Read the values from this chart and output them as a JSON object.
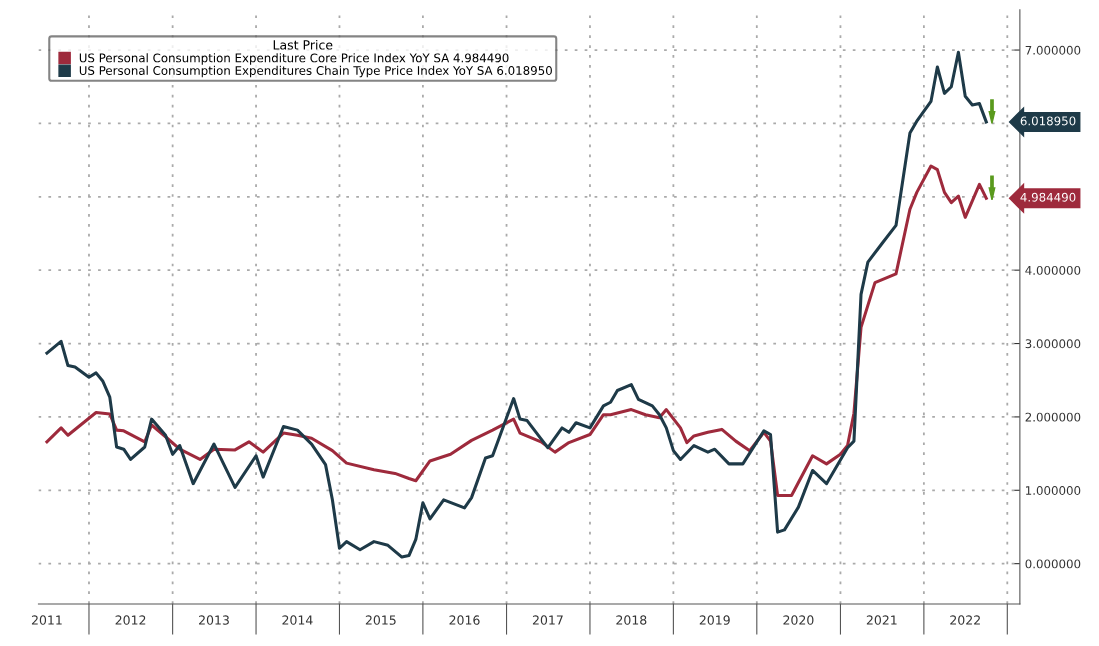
{
  "chart_data": {
    "type": "line",
    "legend_title": "Last Price",
    "legend": "top left",
    "grid": true,
    "line_style": "solid",
    "marker": "none",
    "xlim": [
      "2011-05-25",
      "2023-02-25"
    ],
    "ylim": [
      -0.55,
      7.55
    ],
    "xticks": [
      {
        "value": "2011-07-01",
        "label": "2011"
      },
      {
        "value": "2012-01-01",
        "label": null
      },
      {
        "value": "2012-07-01",
        "label": "2012"
      },
      {
        "value": "2013-01-01",
        "label": null
      },
      {
        "value": "2013-07-01",
        "label": "2013"
      },
      {
        "value": "2014-01-01",
        "label": null
      },
      {
        "value": "2014-07-01",
        "label": "2014"
      },
      {
        "value": "2015-01-01",
        "label": null
      },
      {
        "value": "2015-07-01",
        "label": "2015"
      },
      {
        "value": "2016-01-01",
        "label": null
      },
      {
        "value": "2016-07-01",
        "label": "2016"
      },
      {
        "value": "2017-01-01",
        "label": null
      },
      {
        "value": "2017-07-01",
        "label": "2017"
      },
      {
        "value": "2018-01-01",
        "label": null
      },
      {
        "value": "2018-07-01",
        "label": "2018"
      },
      {
        "value": "2019-01-01",
        "label": null
      },
      {
        "value": "2019-07-01",
        "label": "2019"
      },
      {
        "value": "2020-01-01",
        "label": null
      },
      {
        "value": "2020-07-01",
        "label": "2020"
      },
      {
        "value": "2021-01-01",
        "label": null
      },
      {
        "value": "2021-07-01",
        "label": "2021"
      },
      {
        "value": "2022-01-01",
        "label": null
      },
      {
        "value": "2022-07-01",
        "label": "2022"
      },
      {
        "value": "2023-01-01",
        "label": null
      }
    ],
    "yticks": [
      {
        "value": 0,
        "label": "0.000000"
      },
      {
        "value": 1,
        "label": "1.000000"
      },
      {
        "value": 2,
        "label": "2.000000"
      },
      {
        "value": 3,
        "label": "3.000000"
      },
      {
        "value": 4,
        "label": "4.000000"
      },
      {
        "value": 5,
        "label": null
      },
      {
        "value": 6,
        "label": null
      },
      {
        "value": 7,
        "label": "7.000000"
      }
    ],
    "series": [
      {
        "name": "US Personal Consumption Expenditure Core Price Index YoY SA 4.984490",
        "color": "#9e2a3c",
        "x": [
          "2011-07",
          "2011-09",
          "2011-10",
          "2012-02",
          "2012-04",
          "2012-05",
          "2012-06",
          "2012-09",
          "2012-10",
          "2012-12",
          "2013-02",
          "2013-05",
          "2013-07",
          "2013-10",
          "2013-12",
          "2014-02",
          "2014-05",
          "2014-07",
          "2014-09",
          "2014-12",
          "2015-02",
          "2015-06",
          "2015-09",
          "2015-11",
          "2015-12",
          "2016-02",
          "2016-05",
          "2016-08",
          "2016-11",
          "2017-02",
          "2017-03",
          "2017-06",
          "2017-08",
          "2017-10",
          "2018-01",
          "2018-03",
          "2018-04",
          "2018-07",
          "2018-09",
          "2018-11",
          "2018-12",
          "2019-02",
          "2019-03",
          "2019-04",
          "2019-06",
          "2019-08",
          "2019-10",
          "2019-12",
          "2020-02",
          "2020-03",
          "2020-04",
          "2020-06",
          "2020-09",
          "2020-11",
          "2021-01",
          "2021-02",
          "2021-03",
          "2021-04",
          "2021-06",
          "2021-09",
          "2021-11",
          "2021-12",
          "2022-02",
          "2022-03",
          "2022-04",
          "2022-05",
          "2022-06",
          "2022-07",
          "2022-09",
          "2022-10"
        ],
        "values": [
          1.66,
          1.85,
          1.75,
          2.06,
          2.04,
          1.82,
          1.81,
          1.66,
          1.89,
          1.73,
          1.56,
          1.42,
          1.56,
          1.55,
          1.66,
          1.52,
          1.78,
          1.75,
          1.71,
          1.54,
          1.37,
          1.28,
          1.23,
          1.16,
          1.13,
          1.4,
          1.49,
          1.68,
          1.82,
          1.97,
          1.78,
          1.66,
          1.52,
          1.65,
          1.76,
          2.03,
          2.03,
          2.1,
          2.03,
          1.99,
          2.1,
          1.85,
          1.65,
          1.74,
          1.79,
          1.83,
          1.67,
          1.54,
          1.79,
          1.67,
          0.93,
          0.93,
          1.47,
          1.36,
          1.49,
          1.61,
          2.05,
          3.22,
          3.83,
          3.95,
          4.83,
          5.06,
          5.42,
          5.37,
          5.06,
          4.92,
          5.01,
          4.72,
          5.17,
          4.98
        ]
      },
      {
        "name": "US Personal Consumption Expenditures Chain Type Price Index YoY SA 6.018950",
        "color": "#1e3a48",
        "x": [
          "2011-07",
          "2011-09",
          "2011-10",
          "2011-11",
          "2012-01",
          "2012-02",
          "2012-03",
          "2012-04",
          "2012-05",
          "2012-06",
          "2012-07",
          "2012-09",
          "2012-10",
          "2012-12",
          "2013-01",
          "2013-02",
          "2013-04",
          "2013-07",
          "2013-10",
          "2014-01",
          "2014-02",
          "2014-05",
          "2014-07",
          "2014-09",
          "2014-11",
          "2014-12",
          "2015-01",
          "2015-02",
          "2015-04",
          "2015-06",
          "2015-08",
          "2015-10",
          "2015-11",
          "2015-12",
          "2016-01",
          "2016-02",
          "2016-04",
          "2016-07",
          "2016-08",
          "2016-10",
          "2016-11",
          "2017-02",
          "2017-03",
          "2017-04",
          "2017-06",
          "2017-07",
          "2017-09",
          "2017-10",
          "2017-11",
          "2018-01",
          "2018-03",
          "2018-04",
          "2018-05",
          "2018-07",
          "2018-08",
          "2018-10",
          "2018-11",
          "2018-12",
          "2019-01",
          "2019-02",
          "2019-04",
          "2019-06",
          "2019-07",
          "2019-09",
          "2019-11",
          "2020-02",
          "2020-03",
          "2020-04",
          "2020-05",
          "2020-07",
          "2020-09",
          "2020-11",
          "2021-02",
          "2021-03",
          "2021-04",
          "2021-05",
          "2021-07",
          "2021-09",
          "2021-11",
          "2021-12",
          "2022-02",
          "2022-03",
          "2022-04",
          "2022-05",
          "2022-06",
          "2022-07",
          "2022-08",
          "2022-09",
          "2022-10"
        ],
        "values": [
          2.87,
          3.03,
          2.7,
          2.68,
          2.54,
          2.6,
          2.49,
          2.27,
          1.59,
          1.56,
          1.42,
          1.59,
          1.97,
          1.75,
          1.49,
          1.61,
          1.09,
          1.63,
          1.04,
          1.47,
          1.18,
          1.87,
          1.82,
          1.63,
          1.35,
          0.87,
          0.21,
          0.3,
          0.19,
          0.3,
          0.25,
          0.09,
          0.11,
          0.33,
          0.83,
          0.61,
          0.87,
          0.76,
          0.9,
          1.44,
          1.47,
          2.25,
          1.97,
          1.95,
          1.7,
          1.58,
          1.85,
          1.79,
          1.92,
          1.85,
          2.15,
          2.2,
          2.36,
          2.44,
          2.24,
          2.15,
          2.03,
          1.85,
          1.54,
          1.42,
          1.61,
          1.52,
          1.56,
          1.36,
          1.36,
          1.81,
          1.76,
          0.43,
          0.46,
          0.77,
          1.27,
          1.09,
          1.58,
          1.67,
          3.67,
          4.11,
          4.36,
          4.61,
          5.87,
          6.03,
          6.3,
          6.77,
          6.41,
          6.5,
          6.97,
          6.37,
          6.25,
          6.27,
          6.02
        ]
      }
    ],
    "annotations": [
      "6.018950",
      "4.984490"
    ]
  }
}
